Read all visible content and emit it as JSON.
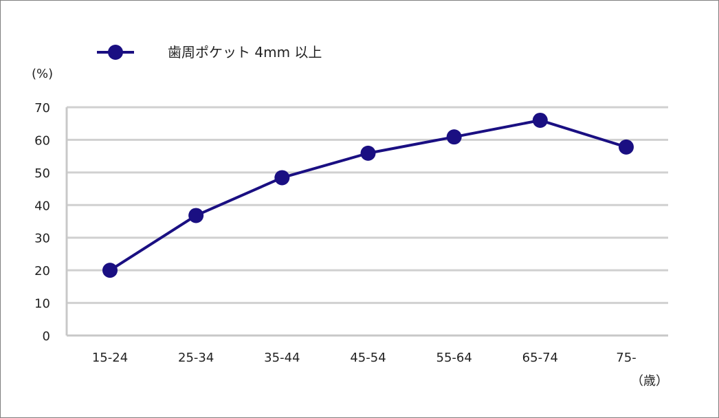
{
  "chart_data": {
    "type": "line",
    "categories": [
      "15-24",
      "25-34",
      "35-44",
      "45-54",
      "55-64",
      "65-74",
      "75-"
    ],
    "series": [
      {
        "name": "歯周ポケット 4mm 以上",
        "values": [
          20.0,
          36.8,
          48.4,
          55.9,
          60.9,
          66.0,
          57.8
        ],
        "color": "#1a0f82"
      }
    ],
    "y_unit": "(%)",
    "x_unit": "（歳）",
    "ylim": [
      0,
      70
    ],
    "y_ticks": [
      0,
      10,
      20,
      30,
      40,
      50,
      60,
      70
    ],
    "grid": true,
    "legend_position": "top-left",
    "colors": {
      "grid": "#d0d0d0",
      "axis": "#c8c8c8",
      "series": "#1a0f82"
    }
  }
}
